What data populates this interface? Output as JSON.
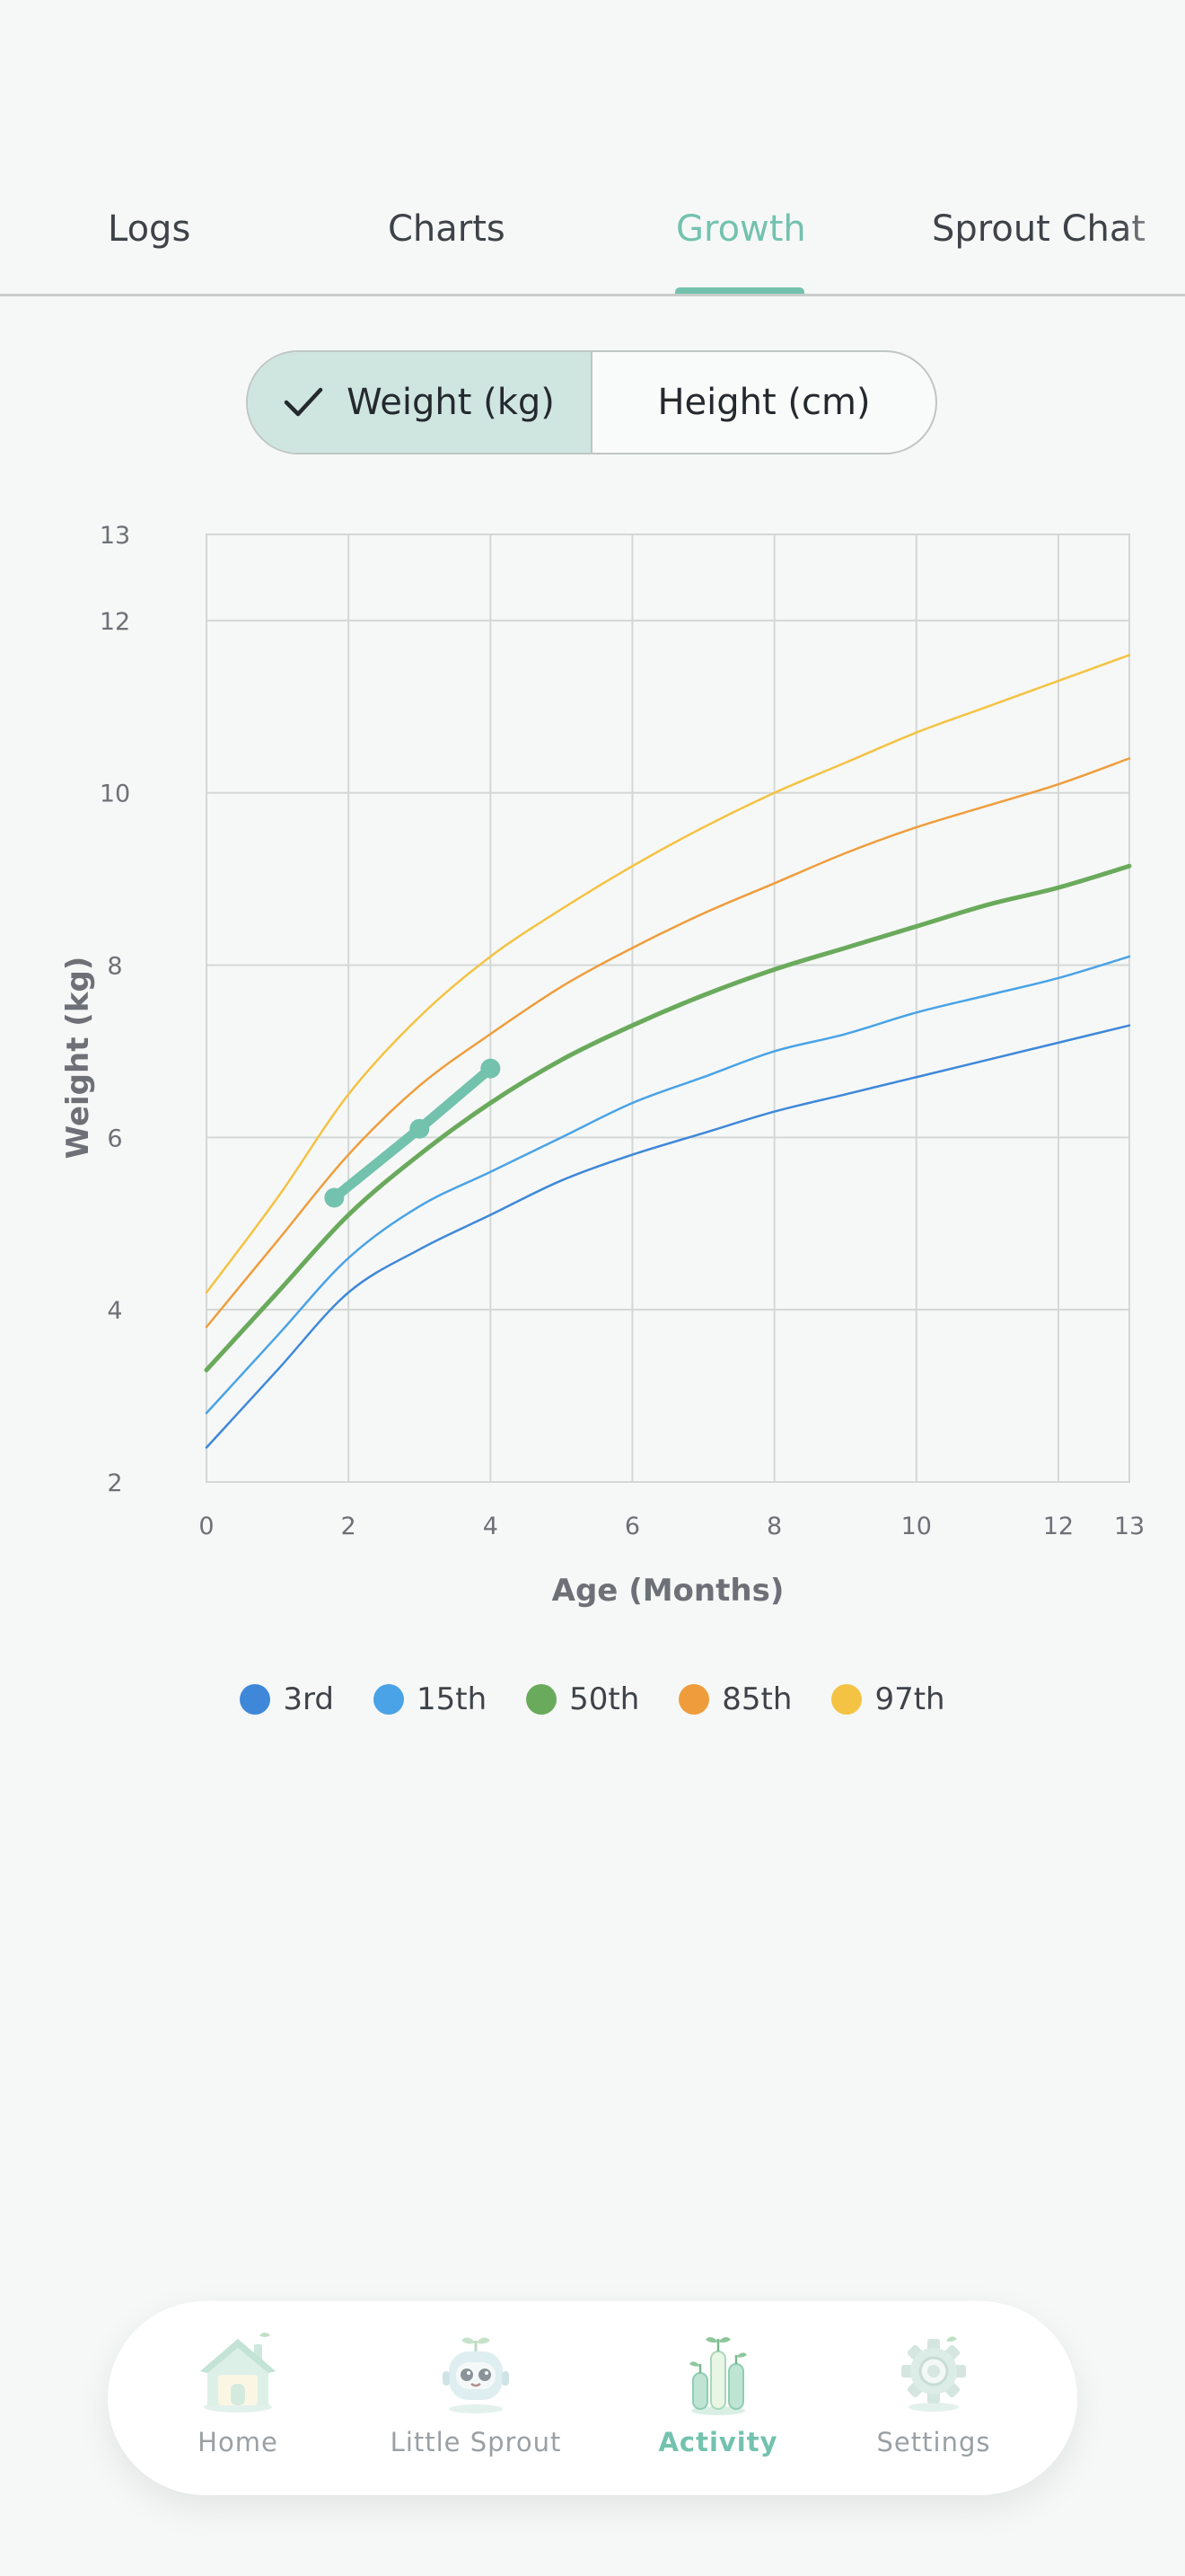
{
  "tabs": [
    {
      "label": "Logs",
      "active": false
    },
    {
      "label": "Charts",
      "active": false
    },
    {
      "label": "Growth",
      "active": true
    },
    {
      "label": "Sprout Chat",
      "active": false
    }
  ],
  "segmented": {
    "options": [
      {
        "label": "Weight (kg)",
        "selected": true
      },
      {
        "label": "Height (cm)",
        "selected": false
      }
    ]
  },
  "chart_data": {
    "type": "line",
    "title": "",
    "xlabel": "Age (Months)",
    "ylabel": "Weight (kg)",
    "xlim": [
      0,
      13
    ],
    "ylim": [
      2,
      13
    ],
    "x_ticks": [
      0,
      2,
      4,
      6,
      8,
      10,
      12,
      13
    ],
    "y_ticks": [
      2,
      4,
      6,
      8,
      10,
      12,
      13
    ],
    "grid": true,
    "legend_position": "bottom",
    "percentiles": [
      {
        "name": "3rd",
        "color": "#3f88d9",
        "x": [
          0,
          1,
          2,
          3,
          4,
          5,
          6,
          7,
          8,
          9,
          10,
          11,
          12,
          13
        ],
        "values": [
          2.4,
          3.3,
          4.2,
          4.7,
          5.1,
          5.5,
          5.8,
          6.05,
          6.3,
          6.5,
          6.7,
          6.9,
          7.1,
          7.3
        ]
      },
      {
        "name": "15th",
        "color": "#4aa3e6",
        "x": [
          0,
          1,
          2,
          3,
          4,
          5,
          6,
          7,
          8,
          9,
          10,
          11,
          12,
          13
        ],
        "values": [
          2.8,
          3.7,
          4.6,
          5.2,
          5.6,
          6.0,
          6.4,
          6.7,
          7.0,
          7.2,
          7.45,
          7.65,
          7.85,
          8.1
        ]
      },
      {
        "name": "50th",
        "color": "#6aaa5c",
        "x": [
          0,
          1,
          2,
          3,
          4,
          5,
          6,
          7,
          8,
          9,
          10,
          11,
          12,
          13
        ],
        "values": [
          3.3,
          4.2,
          5.1,
          5.8,
          6.4,
          6.9,
          7.3,
          7.65,
          7.95,
          8.2,
          8.45,
          8.7,
          8.9,
          9.15
        ]
      },
      {
        "name": "85th",
        "color": "#ef9d3c",
        "x": [
          0,
          1,
          2,
          3,
          4,
          5,
          6,
          7,
          8,
          9,
          10,
          11,
          12,
          13
        ],
        "values": [
          3.8,
          4.8,
          5.8,
          6.6,
          7.2,
          7.75,
          8.2,
          8.6,
          8.95,
          9.3,
          9.6,
          9.85,
          10.1,
          10.4
        ]
      },
      {
        "name": "97th",
        "color": "#f4c343",
        "x": [
          0,
          1,
          2,
          3,
          4,
          5,
          6,
          7,
          8,
          9,
          10,
          11,
          12,
          13
        ],
        "values": [
          4.2,
          5.3,
          6.5,
          7.4,
          8.1,
          8.65,
          9.15,
          9.6,
          10.0,
          10.35,
          10.7,
          11.0,
          11.3,
          11.6
        ]
      }
    ],
    "measurements": {
      "color": "#73c2ae",
      "x": [
        1.8,
        3.0,
        4.0
      ],
      "values": [
        5.3,
        6.1,
        6.8
      ]
    }
  },
  "nav": {
    "items": [
      {
        "label": "Home",
        "icon": "home-icon",
        "active": false
      },
      {
        "label": "Little Sprout",
        "icon": "sprout-robot-icon",
        "active": false
      },
      {
        "label": "Activity",
        "icon": "activity-chart-icon",
        "active": true
      },
      {
        "label": "Settings",
        "icon": "gear-icon",
        "active": false
      }
    ],
    "active_color": "#73c2ae"
  }
}
